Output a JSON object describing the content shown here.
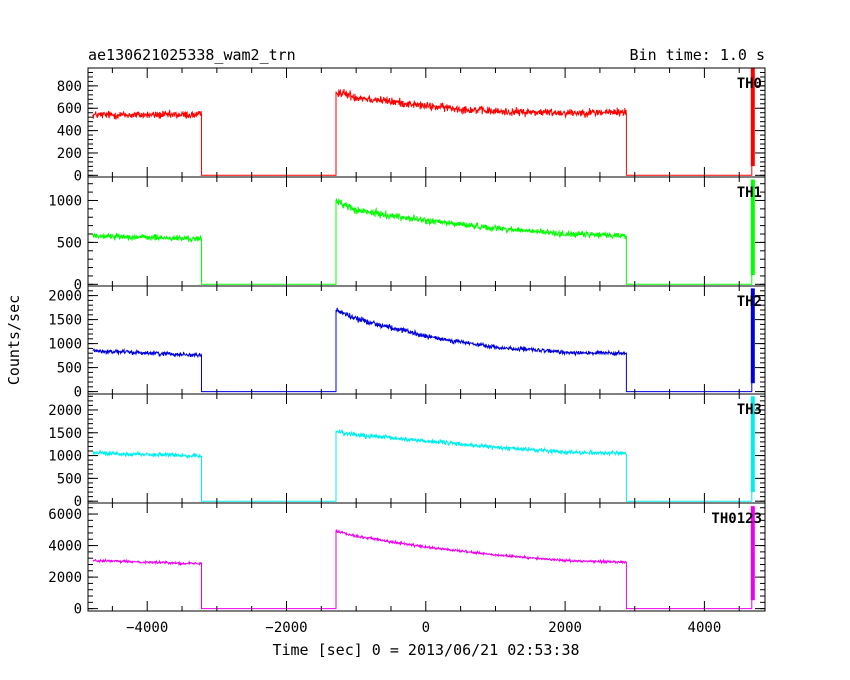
{
  "header": {
    "title": "ae130621025338_wam2_trn",
    "bin_time": "Bin time: 1.0 s"
  },
  "chart_data": {
    "type": "line",
    "title": "ae130621025338_wam2_trn",
    "xlabel": "Time [sec] 0 = 2013/06/21 02:53:38",
    "ylabel": "Counts/sec",
    "xlim": [
      -4850,
      4870
    ],
    "x_ticks": [
      -4000,
      -2000,
      0,
      2000,
      4000
    ],
    "x_tick_labels": [
      "−4000",
      "−2000",
      "0",
      "2000",
      "4000"
    ],
    "legend": "none",
    "grid": false,
    "panels": [
      {
        "name": "TH0",
        "color": "#ff0000",
        "ylim": [
          -15,
          960
        ],
        "y_ticks": [
          0,
          200,
          400,
          600,
          800
        ],
        "spike_top": 960,
        "x": [
          -4780,
          -3220,
          -3220,
          -1290,
          -1290,
          -1000,
          0,
          1000,
          2000,
          2880,
          2880,
          4680,
          4680
        ],
        "y": [
          540,
          540,
          0,
          0,
          750,
          700,
          620,
          570,
          560,
          565,
          0,
          0,
          960
        ],
        "noise": [
          40,
          40,
          0,
          0,
          45,
          45,
          40,
          40,
          40,
          40,
          0,
          0,
          0
        ]
      },
      {
        "name": "TH1",
        "color": "#00ff00",
        "ylim": [
          -20,
          1280
        ],
        "y_ticks": [
          0,
          500,
          1000
        ],
        "spike_top": 1250,
        "x": [
          -4780,
          -3220,
          -3220,
          -1290,
          -1290,
          -1000,
          0,
          1000,
          2000,
          2880,
          2880,
          4680,
          4680
        ],
        "y": [
          580,
          540,
          0,
          0,
          1000,
          880,
          760,
          670,
          600,
          580,
          0,
          0,
          1250
        ],
        "noise": [
          40,
          40,
          0,
          0,
          50,
          50,
          45,
          40,
          40,
          40,
          0,
          0,
          0
        ]
      },
      {
        "name": "TH2",
        "color": "#0000dd",
        "ylim": [
          -50,
          2200
        ],
        "y_ticks": [
          0,
          500,
          1000,
          1500,
          2000
        ],
        "spike_top": 2150,
        "x": [
          -4780,
          -3220,
          -3220,
          -1290,
          -1290,
          -1000,
          0,
          1000,
          2000,
          2880,
          2880,
          4680,
          4680
        ],
        "y": [
          850,
          760,
          0,
          0,
          1700,
          1520,
          1150,
          920,
          820,
          790,
          0,
          0,
          2150
        ],
        "noise": [
          50,
          50,
          0,
          0,
          70,
          70,
          55,
          50,
          50,
          50,
          0,
          0,
          0
        ]
      },
      {
        "name": "TH3",
        "color": "#00eeee",
        "ylim": [
          -40,
          2350
        ],
        "y_ticks": [
          0,
          500,
          1000,
          1500,
          2000
        ],
        "spike_top": 2300,
        "x": [
          -4780,
          -3220,
          -3220,
          -1290,
          -1290,
          -1000,
          0,
          1000,
          2000,
          2880,
          2880,
          4680,
          4680
        ],
        "y": [
          1060,
          990,
          0,
          0,
          1540,
          1450,
          1320,
          1180,
          1080,
          1050,
          0,
          0,
          2300
        ],
        "noise": [
          50,
          50,
          0,
          0,
          60,
          60,
          55,
          50,
          50,
          50,
          0,
          0,
          0
        ]
      },
      {
        "name": "TH0123",
        "color": "#ee00ee",
        "ylim": [
          -150,
          6700
        ],
        "y_ticks": [
          0,
          2000,
          4000,
          6000
        ],
        "spike_top": 6500,
        "x": [
          -4780,
          -3220,
          -3220,
          -1290,
          -1290,
          -1000,
          0,
          1000,
          2000,
          2880,
          2880,
          4680,
          4680
        ],
        "y": [
          3050,
          2850,
          0,
          0,
          4950,
          4600,
          3900,
          3400,
          3050,
          2950,
          0,
          0,
          6500
        ],
        "noise": [
          80,
          80,
          0,
          0,
          100,
          100,
          90,
          80,
          80,
          80,
          0,
          0,
          0
        ]
      }
    ]
  }
}
